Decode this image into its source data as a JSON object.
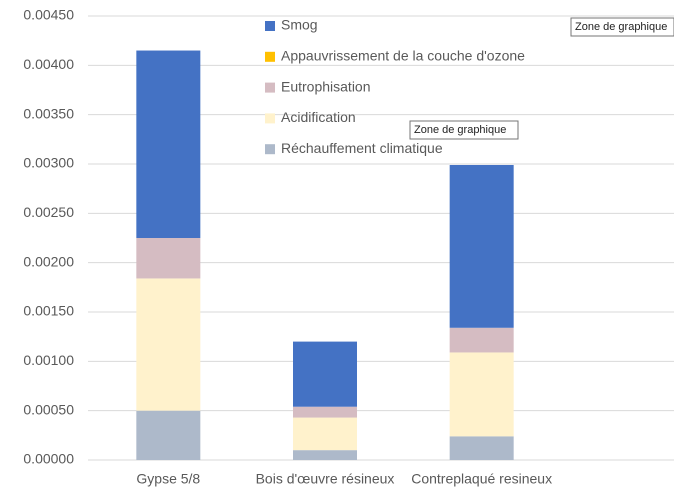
{
  "chart_data": {
    "type": "stacked_bar",
    "categories": [
      "Gypse 5/8",
      "Bois d'œuvre résineux",
      "Contreplaqué resineux"
    ],
    "series": [
      {
        "name": "Réchauffement climatique",
        "color": "#adb9ca",
        "values": [
          0.0005,
          0.0001,
          0.00024
        ]
      },
      {
        "name": "Acidification",
        "color": "#fff2cc",
        "values": [
          0.00134,
          0.00033,
          0.00085
        ]
      },
      {
        "name": "Eutrophisation",
        "color": "#d5bcc2",
        "values": [
          0.00041,
          0.00011,
          0.00025
        ]
      },
      {
        "name": "Appauvrissement de la couche d'ozone",
        "color": "#ffc000",
        "values": [
          0,
          0,
          0
        ]
      },
      {
        "name": "Smog",
        "color": "#4472c4",
        "values": [
          0.0019,
          0.00066,
          0.00165
        ]
      }
    ],
    "ylim": [
      0,
      0.0045
    ],
    "yticks": [
      {
        "value": 0,
        "label": "0.00000"
      },
      {
        "value": 0.0005,
        "label": "0.00050"
      },
      {
        "value": 0.001,
        "label": "0.00100"
      },
      {
        "value": 0.0015,
        "label": "0.00150"
      },
      {
        "value": 0.002,
        "label": "0.00200"
      },
      {
        "value": 0.0025,
        "label": "0.00250"
      },
      {
        "value": 0.003,
        "label": "0.00300"
      },
      {
        "value": 0.0035,
        "label": "0.00350"
      },
      {
        "value": 0.004,
        "label": "0.00400"
      },
      {
        "value": 0.0045,
        "label": "0.00450"
      }
    ],
    "grid": true,
    "legend": "top",
    "tooltips": [
      "Zone de graphique",
      "Zone de graphique"
    ]
  }
}
